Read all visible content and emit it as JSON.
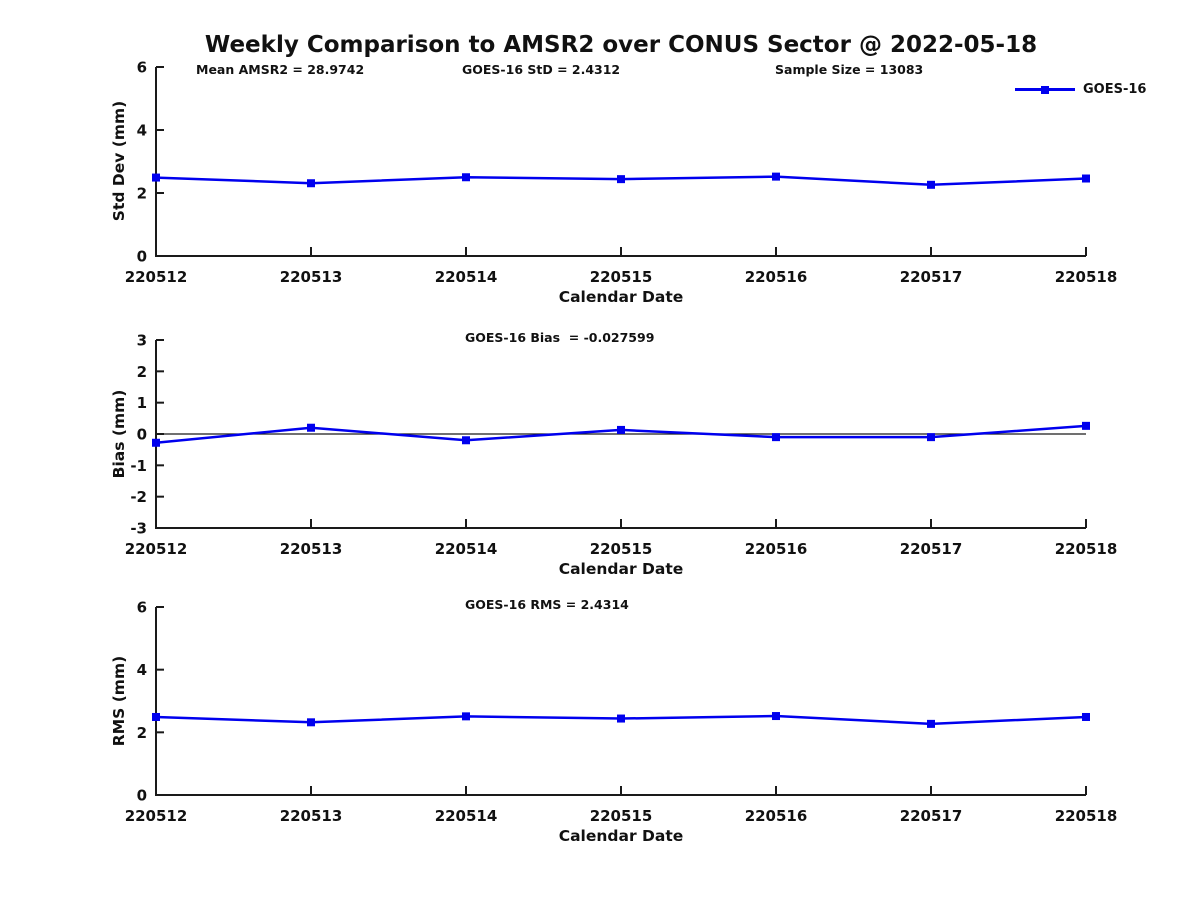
{
  "figure": {
    "title": "Weekly Comparison to AMSR2 over CONUS Sector @ 2022-05-18",
    "background_color": "#ffffff",
    "series_color": "#0000ee",
    "axis_color": "#1a1a1a",
    "legend": {
      "label": "GOES-16",
      "marker": "square",
      "position": "top-right"
    }
  },
  "chart_data": [
    {
      "type": "line",
      "panel": "std-dev",
      "annotations": [
        "Mean AMSR2 = 28.9742",
        "GOES-16 StD = 2.4312",
        "Sample Size = 13083"
      ],
      "categories": [
        "220512",
        "220513",
        "220514",
        "220515",
        "220516",
        "220517",
        "220518"
      ],
      "series": [
        {
          "name": "GOES-16",
          "values": [
            2.49,
            2.31,
            2.5,
            2.44,
            2.52,
            2.26,
            2.46
          ]
        }
      ],
      "xlabel": "Calendar Date",
      "ylabel": "Std Dev (mm)",
      "ylim": [
        0,
        6
      ],
      "yticks": [
        0,
        2,
        4,
        6
      ],
      "zero_line": false,
      "grid": false,
      "legend_position": "top-right"
    },
    {
      "type": "line",
      "panel": "bias",
      "annotations": [
        "GOES-16 Bias  = -0.027599"
      ],
      "categories": [
        "220512",
        "220513",
        "220514",
        "220515",
        "220516",
        "220517",
        "220518"
      ],
      "series": [
        {
          "name": "GOES-16",
          "values": [
            -0.28,
            0.2,
            -0.2,
            0.13,
            -0.1,
            -0.1,
            0.26
          ]
        }
      ],
      "xlabel": "Calendar Date",
      "ylabel": "Bias (mm)",
      "ylim": [
        -3,
        3
      ],
      "yticks": [
        -3,
        -2,
        -1,
        0,
        1,
        2,
        3
      ],
      "zero_line": true,
      "grid": false
    },
    {
      "type": "line",
      "panel": "rms",
      "annotations": [
        "GOES-16 RMS = 2.4314"
      ],
      "categories": [
        "220512",
        "220513",
        "220514",
        "220515",
        "220516",
        "220517",
        "220518"
      ],
      "series": [
        {
          "name": "GOES-16",
          "values": [
            2.49,
            2.32,
            2.51,
            2.44,
            2.52,
            2.27,
            2.49
          ]
        }
      ],
      "xlabel": "Calendar Date",
      "ylabel": "RMS (mm)",
      "ylim": [
        0,
        6
      ],
      "yticks": [
        0,
        2,
        4,
        6
      ],
      "zero_line": false,
      "grid": false
    }
  ]
}
